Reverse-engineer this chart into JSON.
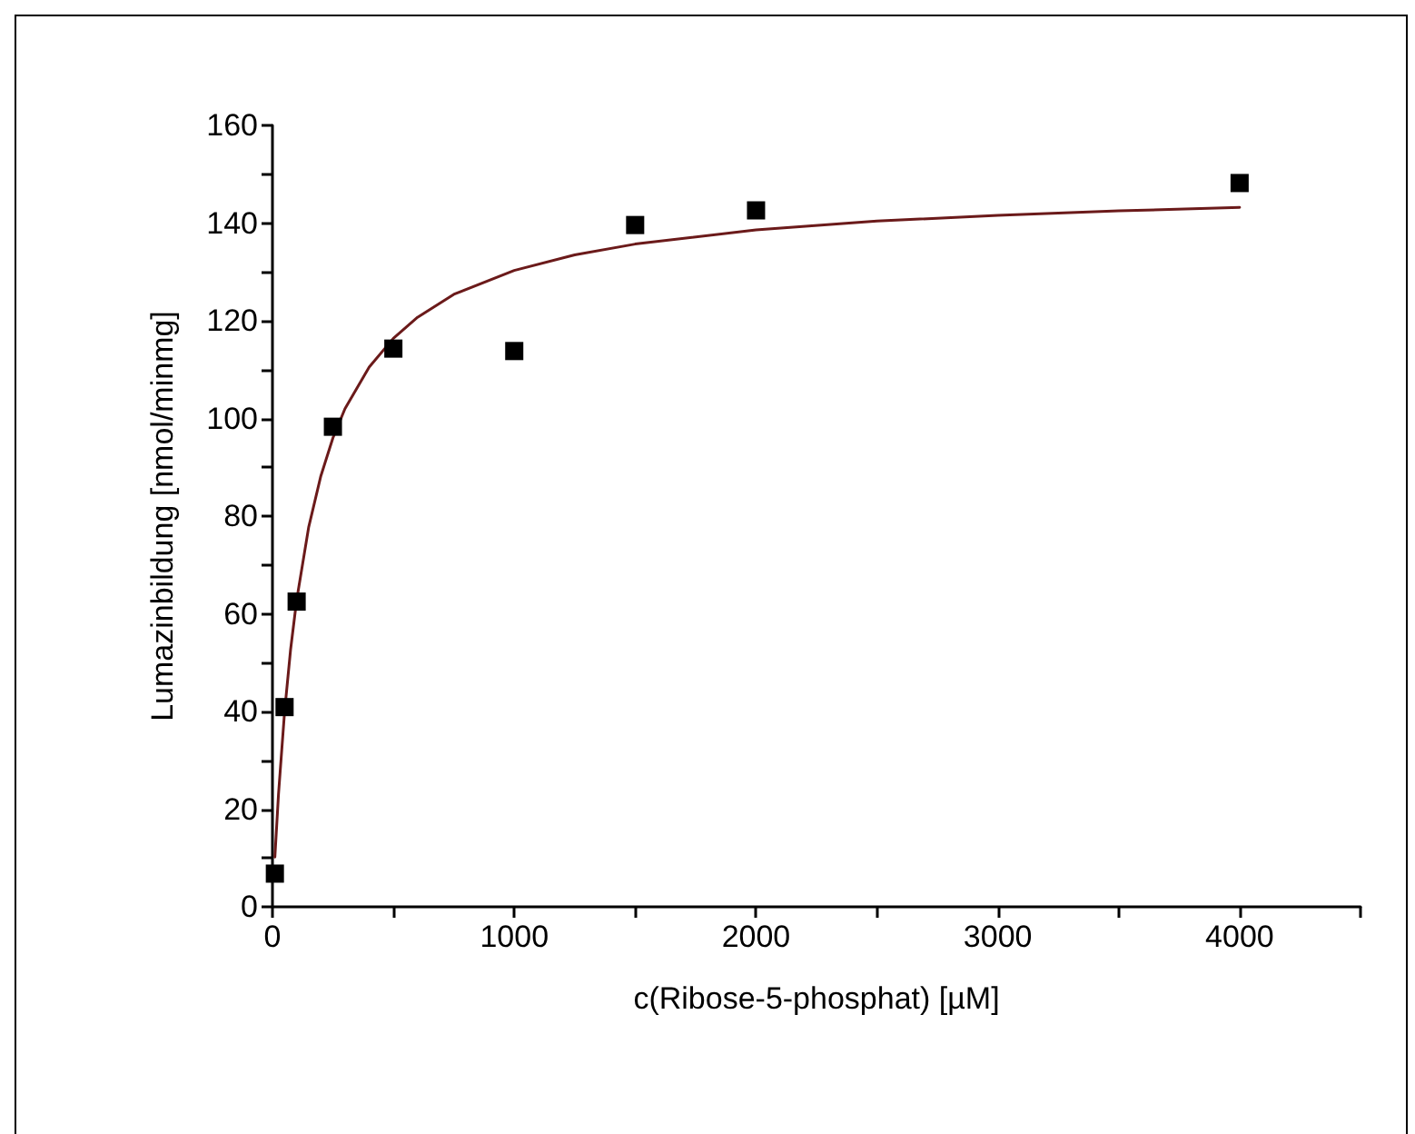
{
  "chart_data": {
    "type": "scatter",
    "xlabel": "c(Ribose-5-phosphat) [µM]",
    "ylabel": "Lumazinbildung [nmol/minmg]",
    "series": [
      {
        "type": "scatter",
        "color": "#000000",
        "marker": "square",
        "x": [
          10,
          50,
          100,
          250,
          500,
          1000,
          1500,
          2000,
          4000
        ],
        "values": [
          6.8,
          40.9,
          62.5,
          98.3,
          114.3,
          113.8,
          139.6,
          142.6,
          148.2
        ]
      },
      {
        "type": "line",
        "color": "#6b1a1a",
        "marker": "none",
        "line_style": "solid",
        "x": [
          10,
          25,
          50,
          75,
          100,
          150,
          200,
          250,
          300,
          400,
          500,
          600,
          750,
          1000,
          1250,
          1500,
          2000,
          2500,
          3000,
          3500,
          4000
        ],
        "values": [
          10.2,
          23.1,
          39.9,
          52.7,
          62.8,
          77.8,
          88.2,
          96.0,
          102.0,
          110.5,
          116.4,
          120.7,
          125.4,
          130.3,
          133.5,
          135.7,
          138.6,
          140.4,
          141.6,
          142.5,
          143.2
        ]
      }
    ],
    "xlim": [
      0,
      4500
    ],
    "xticks": [
      0,
      {
        "value": 500,
        "label": null
      },
      1000,
      {
        "value": 1500,
        "label": null
      },
      2000,
      {
        "value": 2500,
        "label": null
      },
      3000,
      {
        "value": 3500,
        "label": null
      },
      4000,
      {
        "value": 4500,
        "label": null
      }
    ],
    "ylim": [
      0,
      160
    ],
    "yticks": [
      0,
      {
        "value": 10,
        "label": null
      },
      20,
      {
        "value": 30,
        "label": null
      },
      40,
      {
        "value": 50,
        "label": null
      },
      60,
      {
        "value": 70,
        "label": null
      },
      80,
      {
        "value": 90,
        "label": null
      },
      100,
      {
        "value": 110,
        "label": null
      },
      120,
      {
        "value": 130,
        "label": null
      },
      140,
      {
        "value": 150,
        "label": null
      },
      160
    ],
    "grid": false
  }
}
